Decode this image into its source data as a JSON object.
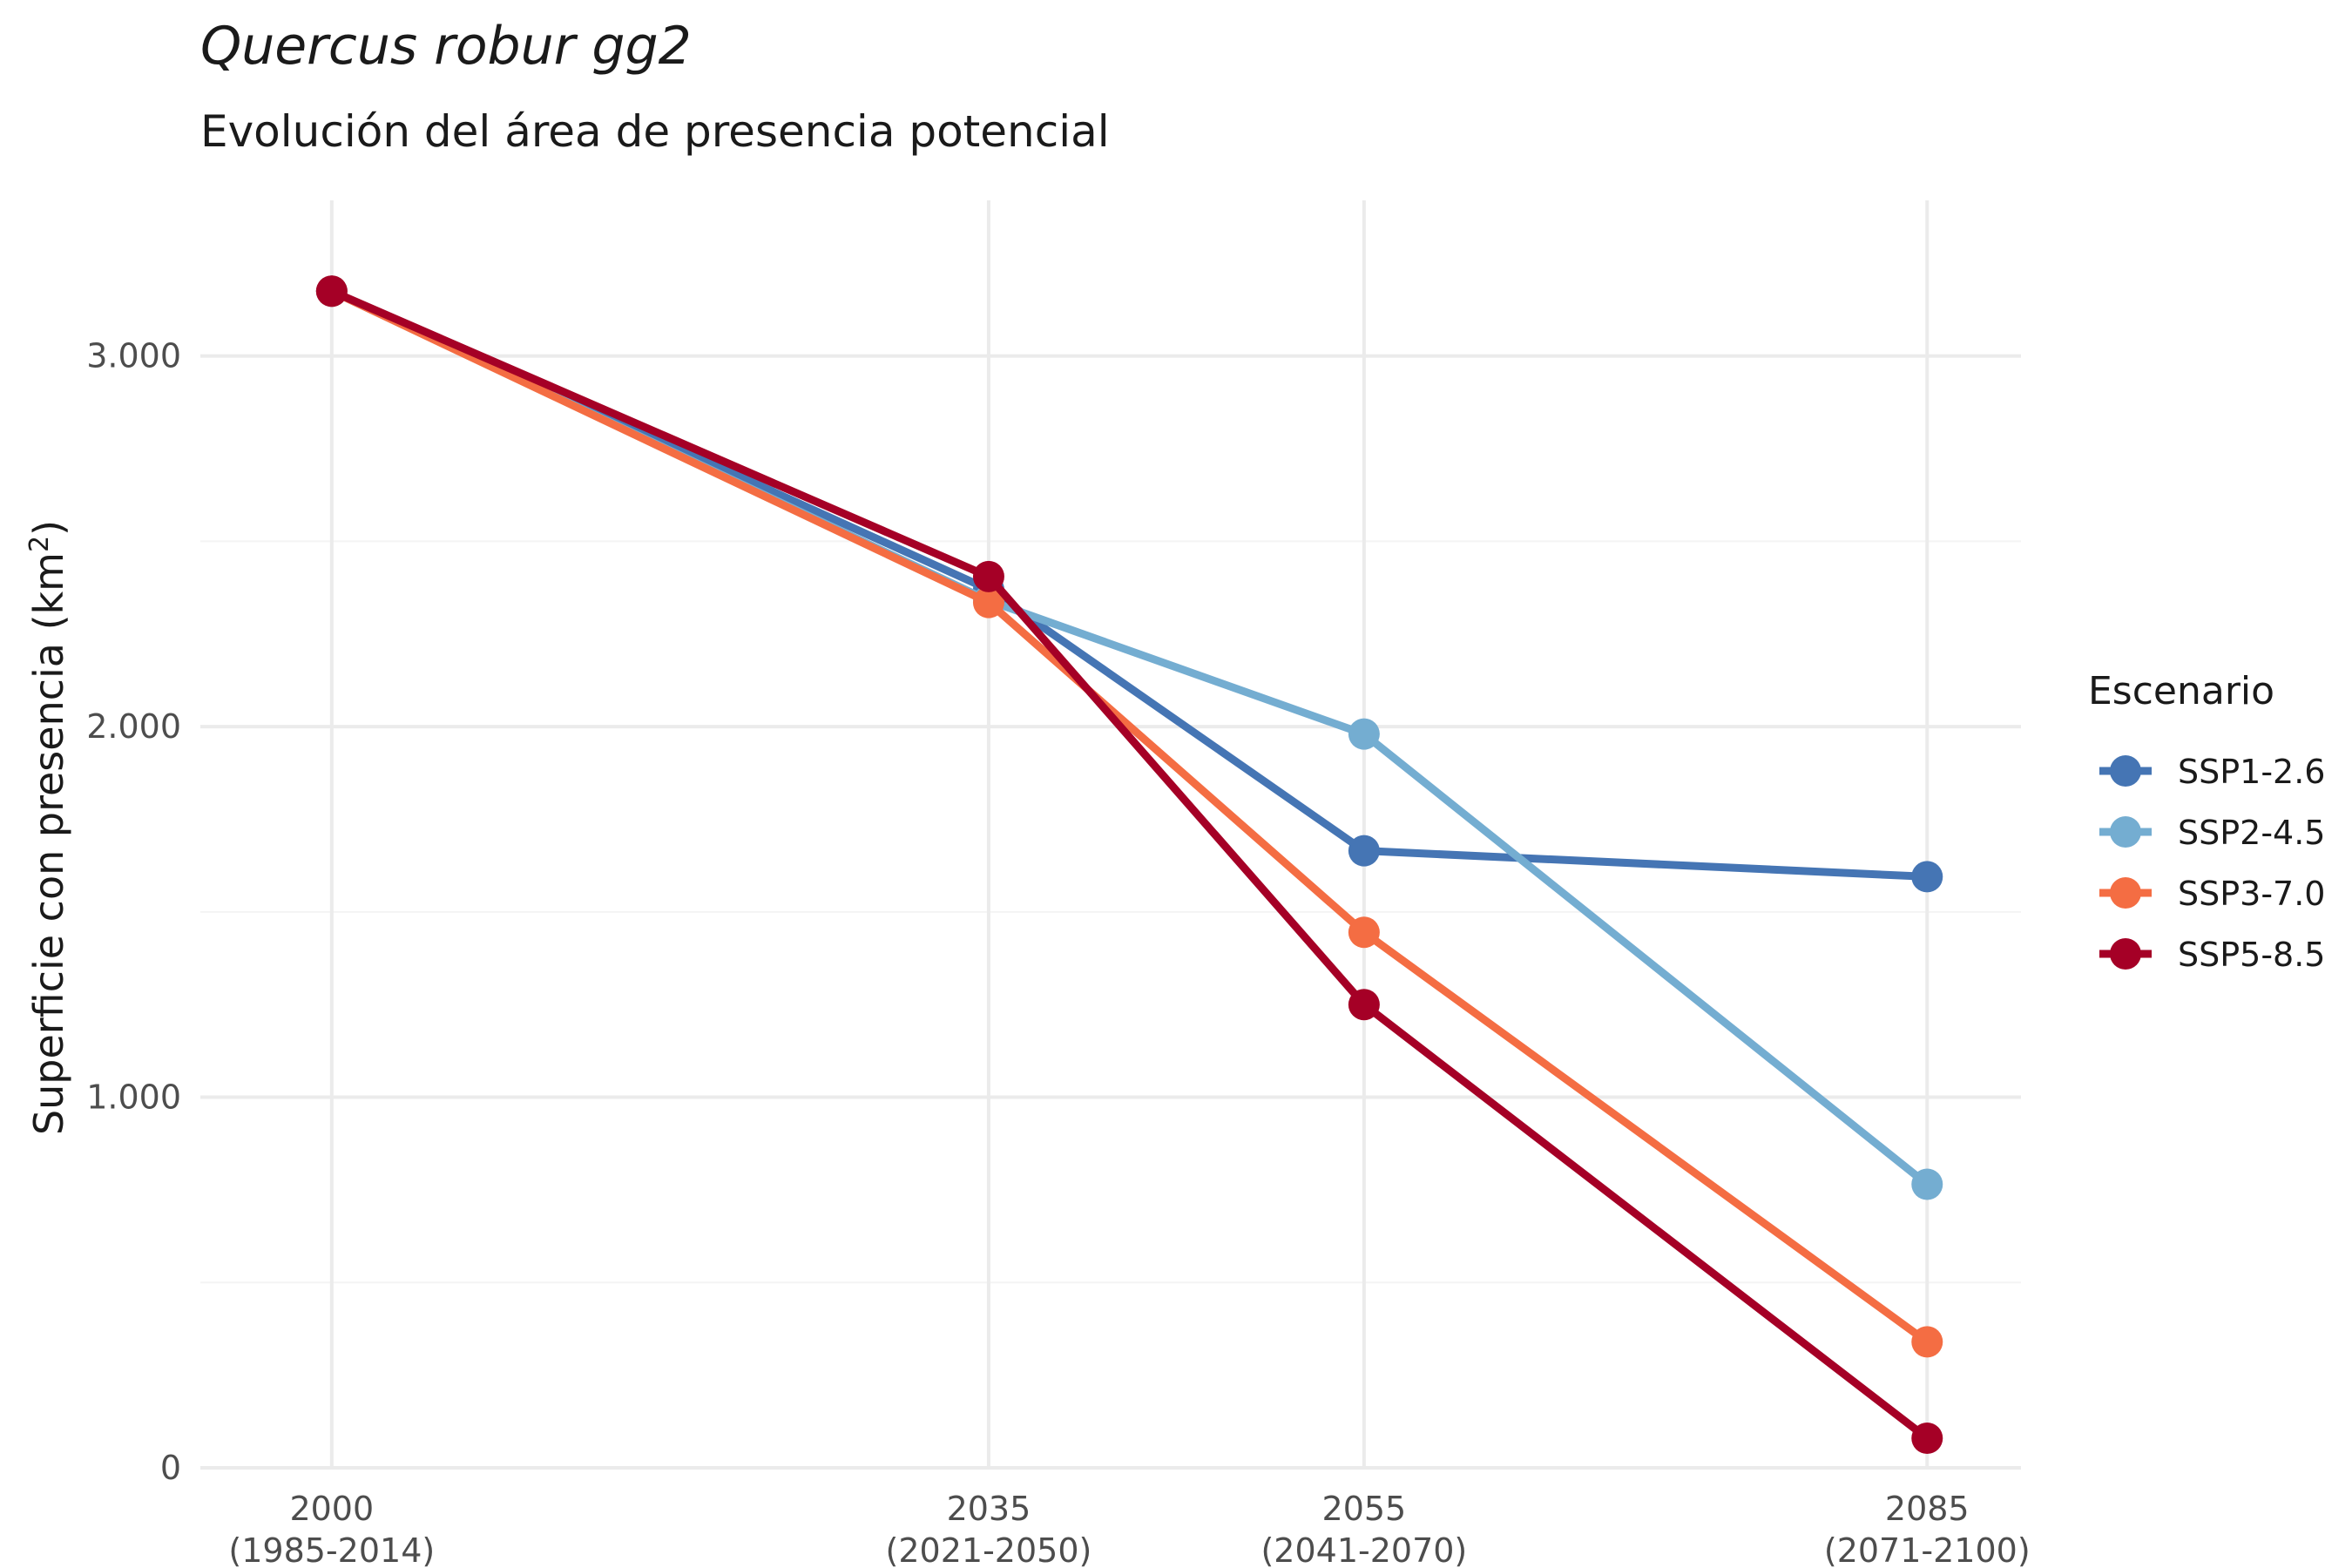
{
  "chart_data": {
    "type": "line",
    "title": "Quercus robur gg2",
    "subtitle": "Evolución del área de presencia potencial",
    "xlabel": "",
    "ylabel": "Superficie con presencia (km²)",
    "x": [
      2000,
      2035,
      2055,
      2085
    ],
    "x_tick_labels": [
      {
        "year": "2000",
        "range": "(1985-2014)"
      },
      {
        "year": "2035",
        "range": "(2021-2050)"
      },
      {
        "year": "2055",
        "range": "(2041-2070)"
      },
      {
        "year": "2085",
        "range": "(2071-2100)"
      }
    ],
    "xlim": [
      1993,
      2090
    ],
    "ylim": [
      0,
      3420
    ],
    "y_ticks": [
      0,
      1000,
      2000,
      3000
    ],
    "y_tick_labels": [
      "0",
      "1.000",
      "2.000",
      "3.000"
    ],
    "grid": true,
    "legend": {
      "title": "Escenario",
      "position": "right"
    },
    "series": [
      {
        "name": "SSP1-2.6",
        "color": "#4575b4",
        "values": [
          3175,
          2370,
          1665,
          1595
        ]
      },
      {
        "name": "SSP2-4.5",
        "color": "#74add1",
        "values": [
          3175,
          2340,
          1980,
          765
        ]
      },
      {
        "name": "SSP3-7.0",
        "color": "#f46d43",
        "values": [
          3175,
          2335,
          1445,
          340
        ]
      },
      {
        "name": "SSP5-8.5",
        "color": "#a50026",
        "values": [
          3175,
          2405,
          1250,
          80
        ]
      }
    ]
  }
}
